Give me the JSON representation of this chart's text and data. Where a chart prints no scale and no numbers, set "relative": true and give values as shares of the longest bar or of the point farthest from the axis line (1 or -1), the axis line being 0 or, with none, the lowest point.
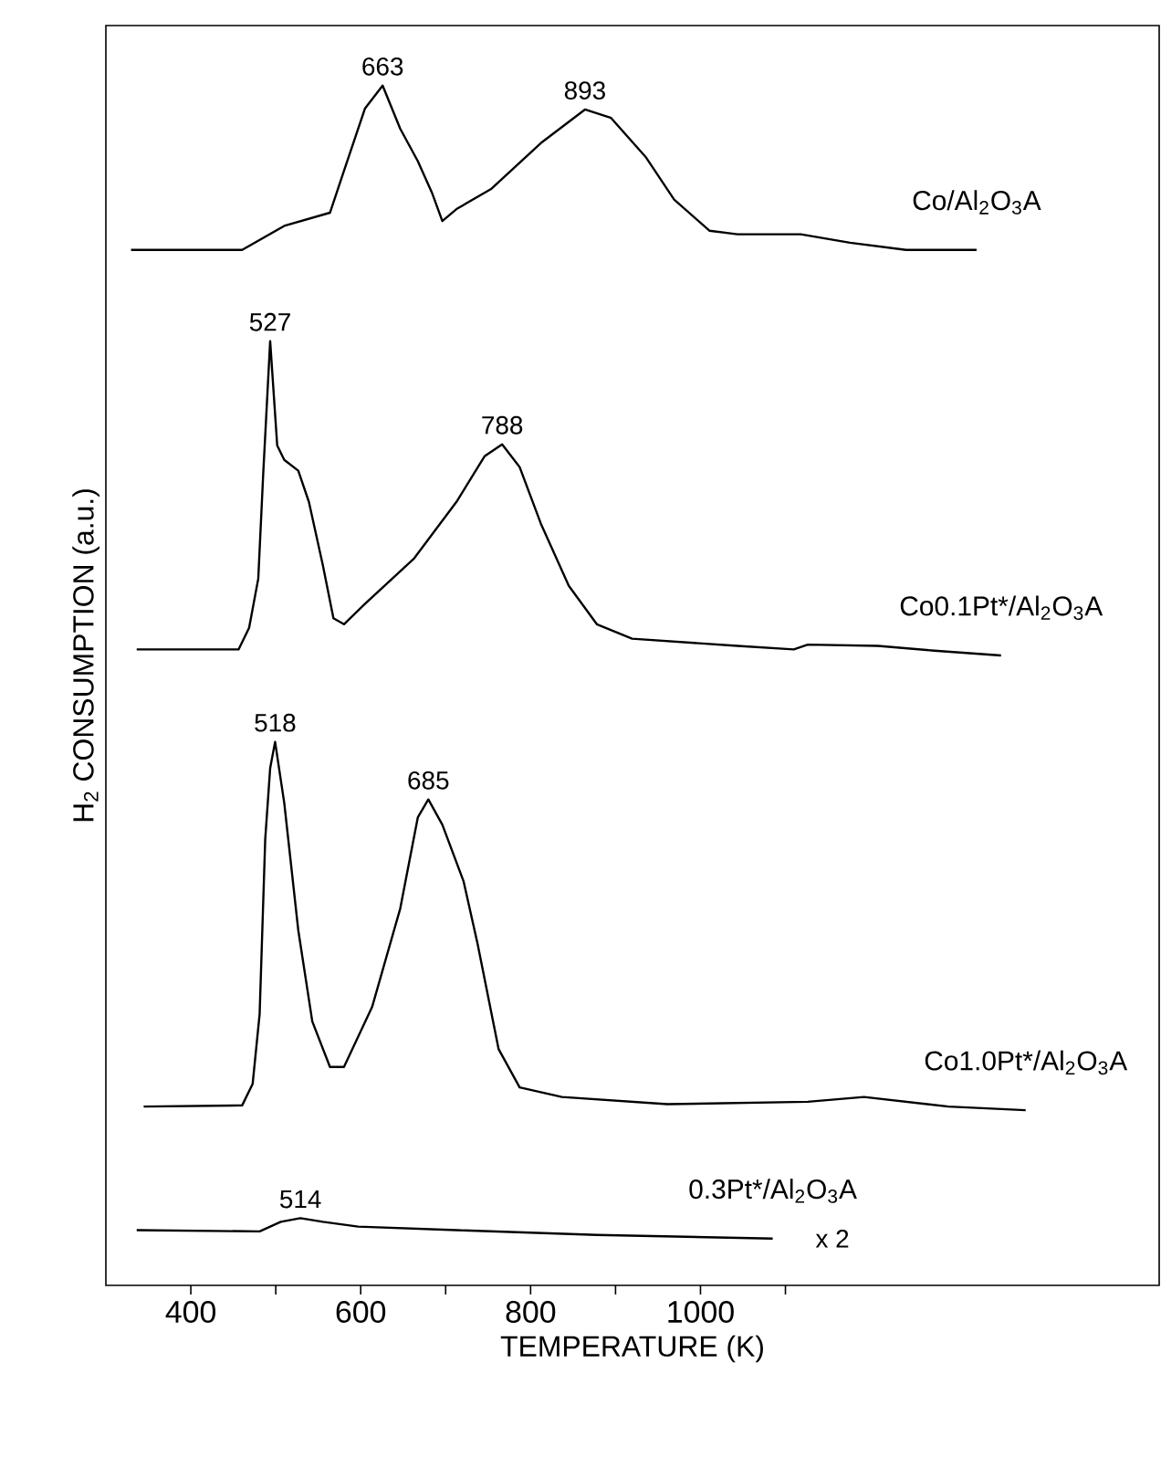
{
  "chart_data": {
    "type": "line",
    "relative": true,
    "xlabel": "TEMPERATURE  (K)",
    "ylabel": "H$_{2}$ CONSUMPTION  (a.u.)",
    "xlim": [
      300,
      1540
    ],
    "xticks": [
      400,
      {
        "value": 500,
        "label": null
      },
      600,
      {
        "value": 700,
        "label": null
      },
      800,
      {
        "value": 900,
        "label": null
      },
      1000,
      {
        "value": 1100,
        "label": null
      }
    ],
    "series": [
      {
        "name": "Co/Al$_{2}$O$_{3}$A",
        "color": "#000000",
        "x": [
          329.6,
          460.4,
          510,
          563.8,
          580.3,
          605.1,
          625.8,
          646.5,
          667.2,
          683.7,
          696.1,
          712.7,
          754,
          812,
          864,
          894.7,
          936,
          969,
          1010.5,
          1043.6,
          1118,
          1176,
          1242,
          1325
        ],
        "values": [
          0.863,
          0.863,
          0.883,
          0.894,
          0.929,
          0.981,
          1.0,
          0.964,
          0.937,
          0.911,
          0.887,
          0.897,
          0.914,
          0.952,
          0.98,
          0.973,
          0.94,
          0.905,
          0.879,
          0.876,
          0.876,
          0.869,
          0.863,
          0.863
        ]
      },
      {
        "name": "Co0.1Pt*/Al$_{2}$O$_{3}$A",
        "color": "#000000",
        "x": [
          336.3,
          456.2,
          468.6,
          479.4,
          485.2,
          493.4,
          501.7,
          510,
          526.5,
          539,
          555.5,
          567.9,
          580.3,
          605.1,
          663,
          712.7,
          745.8,
          766.5,
          787.1,
          812,
          845,
          878,
          919.5,
          1043.6,
          1109.8,
          1126.3,
          1209,
          1275.3,
          1353.8
        ],
        "values": [
          0.53,
          0.53,
          0.548,
          0.589,
          0.676,
          0.787,
          0.7,
          0.688,
          0.679,
          0.653,
          0.6,
          0.556,
          0.551,
          0.568,
          0.606,
          0.653,
          0.691,
          0.701,
          0.682,
          0.635,
          0.583,
          0.551,
          0.539,
          0.533,
          0.53,
          0.534,
          0.533,
          0.529,
          0.525
        ]
      },
      {
        "name": "Co1.0Pt*/Al$_{2}$O$_{3}$A",
        "color": "#000000",
        "x": [
          344.5,
          460.4,
          472.8,
          481,
          487.6,
          493.4,
          499.2,
          510,
          526.5,
          543,
          563.8,
          580.3,
          613.4,
          646.5,
          667.2,
          679.6,
          696.1,
          721,
          737.5,
          762.3,
          787.1,
          836.8,
          961,
          1126.3,
          1192.5,
          1291.8,
          1382.8
        ],
        "values": [
          0.149,
          0.15,
          0.168,
          0.226,
          0.372,
          0.431,
          0.453,
          0.402,
          0.296,
          0.22,
          0.182,
          0.182,
          0.232,
          0.314,
          0.39,
          0.405,
          0.384,
          0.337,
          0.285,
          0.197,
          0.165,
          0.157,
          0.151,
          0.153,
          0.157,
          0.149,
          0.146
        ]
      },
      {
        "name": "0.3Pt*/Al$_{2}$O$_{3}$A",
        "color": "#000000",
        "x": [
          336.3,
          481,
          505.9,
          529,
          555.5,
          596.9,
          712.7,
          878,
          1085
        ],
        "values": [
          0.046,
          0.045,
          0.053,
          0.056,
          0.053,
          0.049,
          0.046,
          0.042,
          0.039
        ]
      }
    ],
    "annotations": [
      {
        "text": "663",
        "x": 625.8,
        "y": 1.0
      },
      {
        "text": "893",
        "x": 864,
        "y": 0.98
      },
      {
        "text": "527",
        "x": 493.4,
        "y": 0.787
      },
      {
        "text": "788",
        "x": 766.5,
        "y": 0.701
      },
      {
        "text": "518",
        "x": 499.2,
        "y": 0.453
      },
      {
        "text": "685",
        "x": 679.6,
        "y": 0.405
      },
      {
        "text": "514",
        "x": 529,
        "y": 0.056
      },
      {
        "text": "x 2",
        "x": 1085,
        "y": 0.039
      }
    ]
  }
}
